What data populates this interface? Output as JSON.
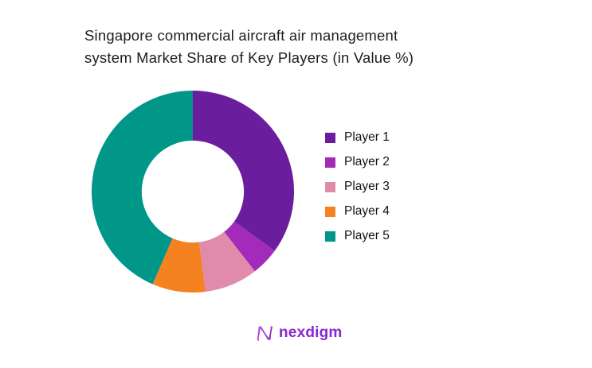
{
  "header": {
    "title": "Singapore commercial aircraft air management system Market Share of Key Players (in Value %)",
    "title_lines": [
      "Singapore commercial aircraft air management",
      "system Market Share of Key Players (in Value %)"
    ]
  },
  "chart_data": {
    "type": "pie",
    "subtype": "donut",
    "title": "Singapore commercial aircraft air management system Market Share of Key Players (in Value %)",
    "categories": [
      "Player 1",
      "Player 2",
      "Player 3",
      "Player 4",
      "Player 5"
    ],
    "values": [
      35,
      4.5,
      8.5,
      8.5,
      43.5
    ],
    "values_note": "estimated from arc angles; no numeric data labels are shown in the image",
    "units": "%",
    "colors": [
      "#6A1E9E",
      "#A42ABA",
      "#E08BAB",
      "#F58220",
      "#009789"
    ],
    "start_angle_deg": 0,
    "direction": "clockwise",
    "inner_radius_ratio": 0.505,
    "grid": false,
    "legend_position": "right",
    "legend_entries": [
      "Player 1",
      "Player 2",
      "Player 3",
      "Player 4",
      "Player 5"
    ]
  },
  "footer": {
    "logo_text": "nexdigm"
  },
  "colors": {
    "background": "#ffffff",
    "title_text": "#1e1e1e",
    "legend_text": "#121212",
    "brand_purple": "#8727ce",
    "brand_gradient_start": "#b44be0",
    "brand_gradient_end": "#7b1fa2"
  }
}
